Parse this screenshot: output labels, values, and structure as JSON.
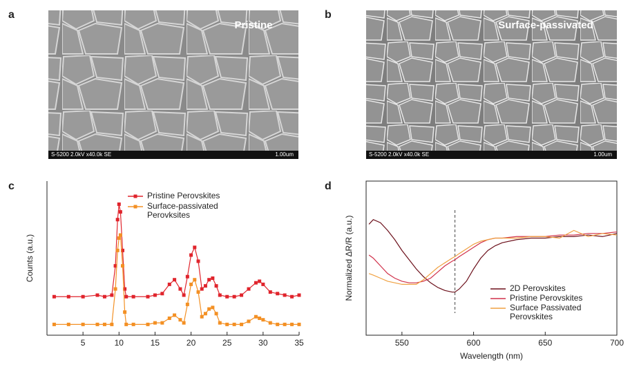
{
  "panels": {
    "a": {
      "label": "a",
      "caption": "Pristine",
      "microscope": "S-5200 2.0kV x40.0k SE",
      "scale_bar": "1.00um"
    },
    "b": {
      "label": "b",
      "caption": "Surface-passivated",
      "microscope": "S-5200 2.0kV x40.0k SE",
      "scale_bar": "1.00um"
    }
  },
  "chart_data": [
    {
      "label": "c",
      "type": "line",
      "markers": "square",
      "frame": "axes",
      "ylabel": "Counts (a.u.)",
      "xlim": [
        0,
        35
      ],
      "xticks": [
        5,
        10,
        15,
        20,
        25,
        30,
        35
      ],
      "ylim": [
        0,
        100
      ],
      "x": [
        1,
        3,
        5,
        7,
        8,
        9,
        9.5,
        9.8,
        10,
        10.2,
        10.5,
        10.8,
        11,
        12,
        14,
        15,
        16,
        17,
        17.7,
        18.5,
        19,
        19.5,
        20,
        20.5,
        21,
        21.5,
        22,
        22.5,
        23,
        23.5,
        24,
        25,
        26,
        27,
        28,
        29,
        29.5,
        30,
        31,
        32,
        33,
        34,
        35
      ],
      "series": [
        {
          "name": "Pristine Perovskites",
          "color": "#e0242c",
          "values": [
            25,
            25,
            25,
            26,
            25,
            26,
            45,
            75,
            85,
            80,
            55,
            30,
            25,
            25,
            25,
            26,
            27,
            33,
            36,
            30,
            26,
            38,
            52,
            57,
            48,
            30,
            32,
            36,
            37,
            32,
            26,
            25,
            25,
            26,
            30,
            34,
            35,
            33,
            28,
            27,
            26,
            25,
            26
          ]
        },
        {
          "name": "Surface-passivated Perovksites",
          "color": "#f39024",
          "values": [
            7,
            7,
            7,
            7,
            7,
            7,
            30,
            55,
            63,
            65,
            45,
            15,
            7,
            7,
            7,
            8,
            8,
            11,
            13,
            10,
            8,
            20,
            33,
            36,
            28,
            12,
            14,
            17,
            18,
            14,
            8,
            7,
            7,
            7,
            9,
            12,
            11,
            10,
            8,
            7,
            7,
            7,
            7
          ]
        }
      ]
    },
    {
      "label": "d",
      "type": "line",
      "frame": "box",
      "xlabel": "Wavelength (nm)",
      "ylabel": "Normalized ΔR/R (a.u.)",
      "xlim": [
        525,
        700
      ],
      "xticks": [
        550,
        600,
        650,
        700
      ],
      "ylim": [
        0,
        100
      ],
      "vline": 587,
      "x": [
        527,
        530,
        535,
        540,
        545,
        550,
        555,
        560,
        565,
        570,
        575,
        580,
        585,
        587,
        590,
        595,
        600,
        605,
        610,
        615,
        620,
        630,
        640,
        650,
        660,
        670,
        680,
        690,
        700
      ],
      "series": [
        {
          "name": "2D Perovskites",
          "color": "#6b0f1a",
          "values": [
            72,
            75,
            73,
            68,
            62,
            55,
            49,
            43,
            38,
            34,
            31,
            29,
            28,
            28,
            30,
            35,
            43,
            50,
            55,
            58,
            60,
            62,
            63,
            63,
            64,
            64,
            65,
            64,
            66
          ]
        },
        {
          "name": "Pristine Perovskites",
          "color": "#d0304a",
          "values": [
            52,
            50,
            45,
            40,
            37,
            35,
            34,
            34,
            35,
            37,
            41,
            45,
            48,
            49,
            51,
            54,
            57,
            60,
            62,
            63,
            63,
            64,
            64,
            64,
            65,
            65,
            66,
            66,
            67
          ]
        },
        {
          "name": "Surface Passivated Perovskites",
          "color": "#f0a040",
          "values": [
            40,
            39,
            37,
            35,
            34,
            33,
            33,
            33,
            36,
            40,
            44,
            47,
            50,
            51,
            53,
            56,
            59,
            61,
            62,
            63,
            63,
            63,
            64,
            64,
            63,
            68,
            64,
            66,
            65
          ]
        }
      ]
    }
  ]
}
